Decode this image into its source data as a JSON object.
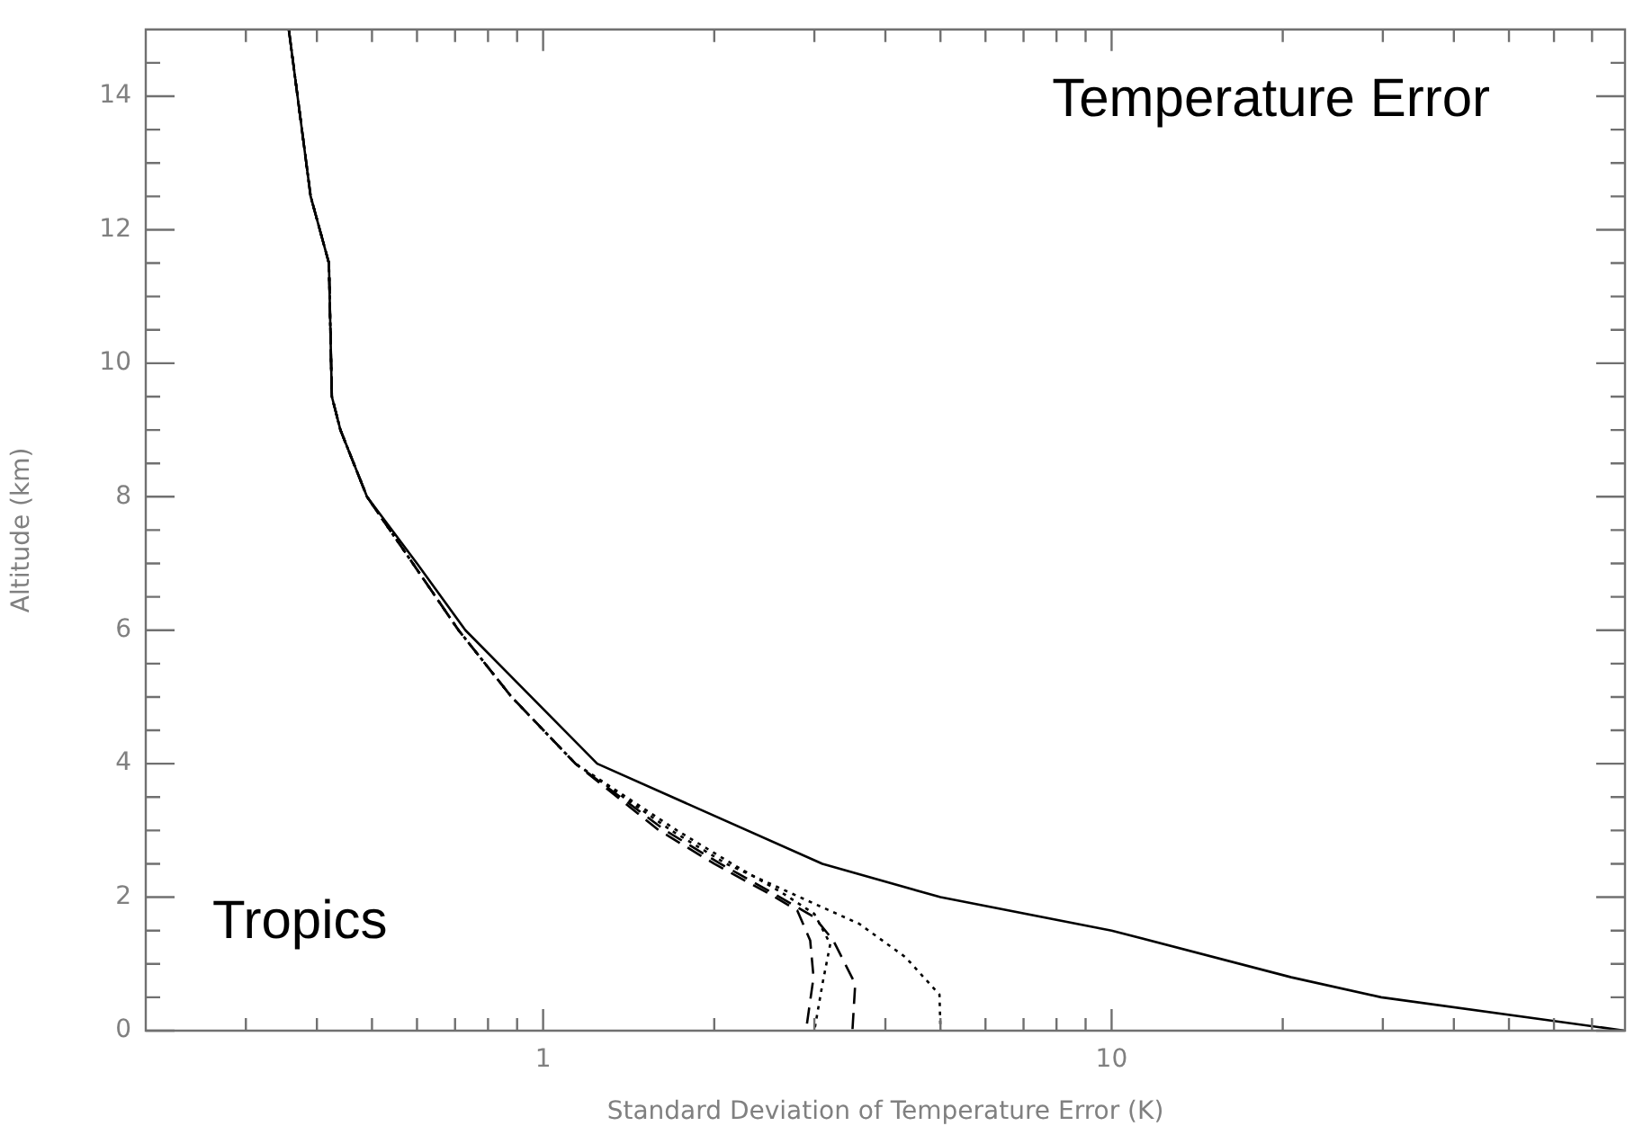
{
  "chart_data": {
    "type": "line",
    "xlabel": "Standard Deviation of Temperature Error (K)",
    "ylabel": "Altitude (km)",
    "annotations": [
      "Temperature Error",
      "Tropics"
    ],
    "log": "x",
    "xlim": [
      0.2,
      80
    ],
    "xticks": [
      {
        "value": 0.3,
        "label": null
      },
      {
        "value": 0.4,
        "label": null
      },
      {
        "value": 0.5,
        "label": null
      },
      {
        "value": 0.6,
        "label": null
      },
      {
        "value": 0.7,
        "label": null
      },
      {
        "value": 0.8,
        "label": null
      },
      {
        "value": 0.9,
        "label": null
      },
      1,
      {
        "value": 2,
        "label": null
      },
      {
        "value": 3,
        "label": null
      },
      {
        "value": 4,
        "label": null
      },
      {
        "value": 5,
        "label": null
      },
      {
        "value": 6,
        "label": null
      },
      {
        "value": 7,
        "label": null
      },
      {
        "value": 8,
        "label": null
      },
      {
        "value": 9,
        "label": null
      },
      10,
      {
        "value": 20,
        "label": null
      },
      {
        "value": 30,
        "label": null
      },
      {
        "value": 40,
        "label": null
      },
      {
        "value": 50,
        "label": null
      },
      {
        "value": 60,
        "label": null
      },
      {
        "value": 70,
        "label": null
      }
    ],
    "ylim": [
      0,
      15
    ],
    "yticks": [
      0,
      {
        "value": 0.5,
        "label": null
      },
      {
        "value": 1,
        "label": null
      },
      {
        "value": 1.5,
        "label": null
      },
      2,
      {
        "value": 2.5,
        "label": null
      },
      {
        "value": 3,
        "label": null
      },
      {
        "value": 3.5,
        "label": null
      },
      4,
      {
        "value": 4.5,
        "label": null
      },
      {
        "value": 5,
        "label": null
      },
      {
        "value": 5.5,
        "label": null
      },
      6,
      {
        "value": 6.5,
        "label": null
      },
      {
        "value": 7,
        "label": null
      },
      {
        "value": 7.5,
        "label": null
      },
      8,
      {
        "value": 8.5,
        "label": null
      },
      {
        "value": 9,
        "label": null
      },
      {
        "value": 9.5,
        "label": null
      },
      10,
      {
        "value": 10.5,
        "label": null
      },
      {
        "value": 11,
        "label": null
      },
      {
        "value": 11.5,
        "label": null
      },
      12,
      {
        "value": 12.5,
        "label": null
      },
      {
        "value": 13,
        "label": null
      },
      {
        "value": 13.5,
        "label": null
      },
      14,
      {
        "value": 14.5,
        "label": null
      }
    ],
    "grid": false,
    "legend": false,
    "marker": "none",
    "series": [
      {
        "color": "#000000",
        "line_style": "solid",
        "x": [
          0.357,
          0.39,
          0.42,
          0.425,
          0.44,
          0.49,
          0.6,
          0.73,
          1.245,
          3.1,
          5.0,
          10,
          20.7,
          29.8,
          80
        ],
        "values": [
          15,
          12.5,
          11.5,
          9.5,
          9,
          8,
          7,
          6,
          4,
          2.5,
          2,
          1.5,
          0.8,
          0.5,
          0
        ]
      },
      {
        "color": "#000000",
        "line_style": "dashed",
        "x": [
          0.357,
          0.39,
          0.42,
          0.425,
          0.44,
          0.49,
          0.59,
          0.71,
          0.88,
          1.14,
          1.6,
          2.0,
          2.5,
          2.8,
          2.95,
          2.99,
          2.9
        ],
        "values": [
          15,
          12.5,
          11.5,
          9.5,
          9,
          8,
          7,
          6,
          5,
          4,
          3,
          2.5,
          2.05,
          1.8,
          1.35,
          0.8,
          0
        ]
      },
      {
        "color": "#000000",
        "line_style": "dotted",
        "x": [
          0.357,
          0.39,
          0.42,
          0.425,
          0.44,
          0.49,
          0.59,
          0.71,
          0.88,
          1.14,
          1.72,
          2.15,
          2.65,
          3.0,
          3.2,
          3.1,
          3.0
        ],
        "values": [
          15,
          12.5,
          11.5,
          9.5,
          9,
          8,
          7,
          6,
          5,
          4,
          3,
          2.5,
          2.05,
          1.75,
          1.3,
          0.7,
          0
        ]
      },
      {
        "color": "#000000",
        "line_style": "dashed",
        "x": [
          0.357,
          0.39,
          0.42,
          0.425,
          0.44,
          0.49,
          0.59,
          0.71,
          0.88,
          1.14,
          1.64,
          2.05,
          2.55,
          3.0,
          3.24,
          3.54,
          3.5
        ],
        "values": [
          15,
          12.5,
          11.5,
          9.5,
          9,
          8,
          7,
          6,
          5,
          4,
          3,
          2.5,
          2.05,
          1.7,
          1.35,
          0.7,
          0
        ]
      },
      {
        "color": "#000000",
        "line_style": "dotted",
        "x": [
          0.357,
          0.39,
          0.42,
          0.425,
          0.44,
          0.49,
          0.59,
          0.71,
          0.88,
          1.14,
          1.68,
          2.1,
          2.88,
          3.6,
          4.34,
          4.98,
          5.0
        ],
        "values": [
          15,
          12.5,
          11.5,
          9.5,
          9,
          8,
          7,
          6,
          5,
          4,
          3,
          2.5,
          1.97,
          1.6,
          1.1,
          0.54,
          0
        ]
      }
    ]
  }
}
